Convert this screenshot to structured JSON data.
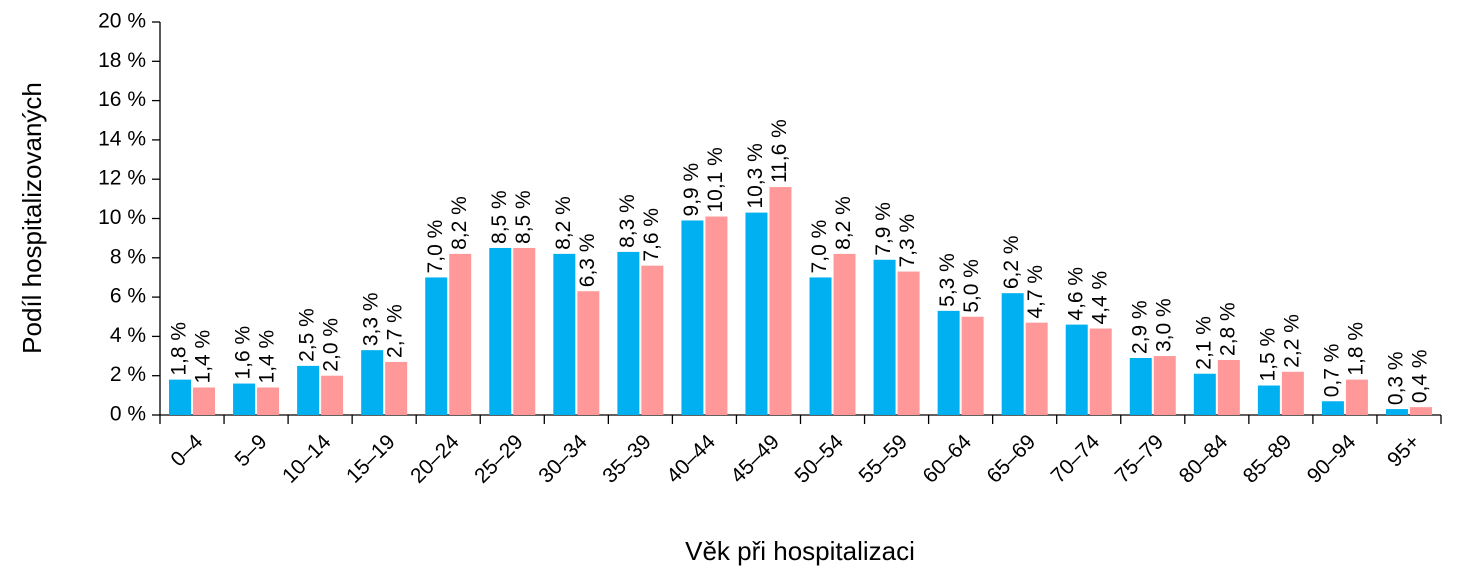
{
  "chart_data": {
    "type": "bar",
    "x_label": "Věk při hospitalizaci",
    "y_label": "Podíl hospitalizovaných",
    "categories": [
      "0–4",
      "5–9",
      "10–14",
      "15–19",
      "20–24",
      "25–29",
      "30–34",
      "35–39",
      "40–44",
      "45–49",
      "50–54",
      "55–59",
      "60–64",
      "65–69",
      "70–74",
      "75–79",
      "80–84",
      "85–89",
      "90–94",
      "95+"
    ],
    "series": [
      {
        "color": "#00b0f0",
        "values": [
          1.8,
          1.6,
          2.5,
          3.3,
          7.0,
          8.5,
          8.2,
          8.3,
          9.9,
          10.3,
          7.0,
          7.9,
          5.3,
          6.2,
          4.6,
          2.9,
          2.1,
          1.5,
          0.7,
          0.3
        ],
        "value_labels": [
          "1,8 %",
          "1,6 %",
          "2,5 %",
          "3,3 %",
          "7,0 %",
          "8,5 %",
          "8,2 %",
          "8,3 %",
          "9,9 %",
          "10,3 %",
          "7,0 %",
          "7,9 %",
          "5,3 %",
          "6,2 %",
          "4,6 %",
          "2,9 %",
          "2,1 %",
          "1,5 %",
          "0,7 %",
          "0,3 %"
        ]
      },
      {
        "color": "#ff9999",
        "values": [
          1.4,
          1.4,
          2.0,
          2.7,
          8.2,
          8.5,
          6.3,
          7.6,
          10.1,
          11.6,
          8.2,
          7.3,
          5.0,
          4.7,
          4.4,
          3.0,
          2.8,
          2.2,
          1.8,
          0.4
        ],
        "value_labels": [
          "1,4 %",
          "1,4 %",
          "2,0 %",
          "2,7 %",
          "8,2 %",
          "8,5 %",
          "6,3 %",
          "7,6 %",
          "10,1 %",
          "11,6 %",
          "8,2 %",
          "7,3 %",
          "5,0 %",
          "4,7 %",
          "4,4 %",
          "3,0 %",
          "2,8 %",
          "2,2 %",
          "1,8 %",
          "0,4 %"
        ]
      }
    ],
    "ylim": [
      0,
      20
    ],
    "yticks": [
      {
        "value": 0,
        "label": "0 %"
      },
      {
        "value": 2,
        "label": "2 %"
      },
      {
        "value": 4,
        "label": "4 %"
      },
      {
        "value": 6,
        "label": "6 %"
      },
      {
        "value": 8,
        "label": "8 %"
      },
      {
        "value": 10,
        "label": "10 %"
      },
      {
        "value": 12,
        "label": "12 %"
      },
      {
        "value": 14,
        "label": "14 %"
      },
      {
        "value": 16,
        "label": "16 %"
      },
      {
        "value": 18,
        "label": "18 %"
      },
      {
        "value": 20,
        "label": "20 %"
      }
    ],
    "grid": false
  }
}
